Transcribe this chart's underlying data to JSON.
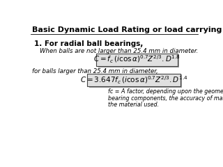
{
  "title": "Basic Dynamic Load Rating or load carrying capacity (C)",
  "heading": "1. For radial ball bearings,",
  "text1": "When balls are not larger than 25.4 mm in diameter.",
  "formula1": "$C = f_c\\, (i \\cos \\alpha)^{0.7} Z^{2/3} . D^{1.8}$",
  "text2": "for balls larger than 25.4 mm in diameter,",
  "formula2": "$C = 3.647 f_c\\, (i \\cos \\alpha)^{0.7} Z^{2/3} . D^{1.4}$",
  "note_line1": "fc = A factor, depending upon the geometry of the",
  "note_line2": "bearing components, the accuracy of manufacture and",
  "note_line3": "the material used.",
  "title_fontsize": 8.0,
  "heading_fontsize": 7.5,
  "text_fontsize": 6.2,
  "formula_fontsize": 7.5,
  "note_fontsize": 5.8
}
